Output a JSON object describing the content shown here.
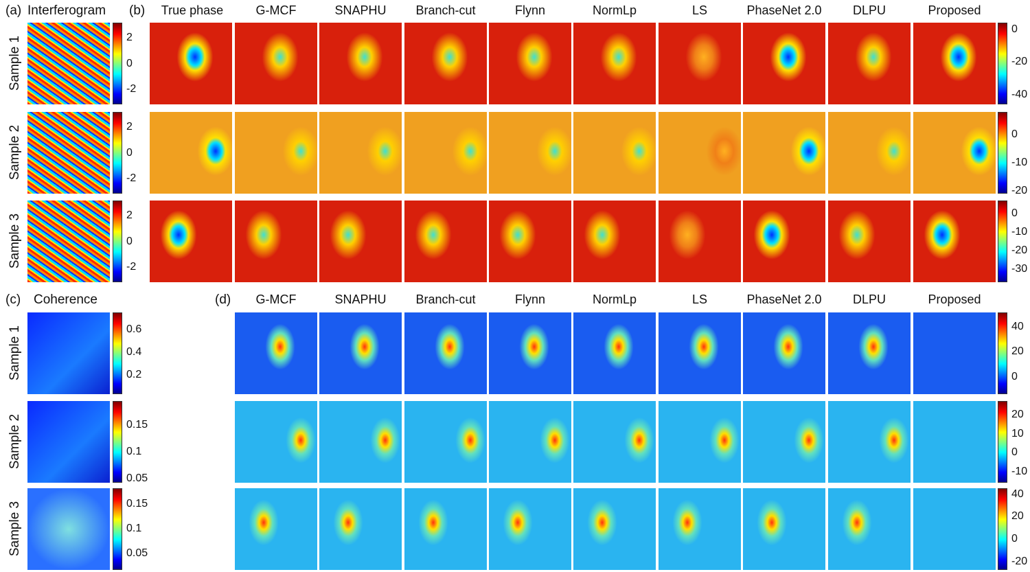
{
  "panels": {
    "a": {
      "tag": "(a)",
      "title": "Interferogram"
    },
    "b": {
      "tag": "(b)",
      "columns": [
        "True phase",
        "G-MCF",
        "SNAPHU",
        "Branch-cut",
        "Flynn",
        "NormLp",
        "LS",
        "PhaseNet 2.0",
        "DLPU",
        "Proposed"
      ]
    },
    "c": {
      "tag": "(c)",
      "title": "Coherence"
    },
    "d": {
      "tag": "(d)",
      "columns": [
        "G-MCF",
        "SNAPHU",
        "Branch-cut",
        "Flynn",
        "NormLp",
        "LS",
        "PhaseNet 2.0",
        "DLPU",
        "Proposed"
      ]
    }
  },
  "rows": [
    "Sample 1",
    "Sample 2",
    "Sample 3"
  ],
  "colorbars": {
    "a": [
      {
        "range": [
          -3.2,
          3.2
        ],
        "ticks": [
          "2",
          "0",
          "-2"
        ],
        "tick_values": [
          2,
          0,
          -2
        ]
      },
      {
        "range": [
          -3.2,
          3.2
        ],
        "ticks": [
          "2",
          "0",
          "-2"
        ],
        "tick_values": [
          2,
          0,
          -2
        ]
      },
      {
        "range": [
          -3.2,
          3.2
        ],
        "ticks": [
          "2",
          "0",
          "-2"
        ],
        "tick_values": [
          2,
          0,
          -2
        ]
      }
    ],
    "b": [
      {
        "range": [
          -46,
          4
        ],
        "ticks": [
          "0",
          "-20",
          "-40"
        ],
        "tick_values": [
          0,
          -20,
          -40
        ]
      },
      {
        "range": [
          -21,
          8
        ],
        "ticks": [
          "0",
          "-10",
          "-20"
        ],
        "tick_values": [
          0,
          -10,
          -20
        ]
      },
      {
        "range": [
          -37,
          7
        ],
        "ticks": [
          "0",
          "-10",
          "-20",
          "-30"
        ],
        "tick_values": [
          0,
          -10,
          -20,
          -30
        ]
      }
    ],
    "c": [
      {
        "range": [
          0.03,
          0.75
        ],
        "ticks": [
          "0.6",
          "0.4",
          "0.2"
        ],
        "tick_values": [
          0.6,
          0.4,
          0.2
        ]
      },
      {
        "range": [
          0.042,
          0.195
        ],
        "ticks": [
          "0.15",
          "0.1",
          "0.05"
        ],
        "tick_values": [
          0.15,
          0.1,
          0.05
        ]
      },
      {
        "range": [
          0.017,
          0.182
        ],
        "ticks": [
          "0.15",
          "0.1",
          "0.05"
        ],
        "tick_values": [
          0.15,
          0.1,
          0.05
        ]
      }
    ],
    "d": [
      {
        "range": [
          -13.7,
          51.5
        ],
        "ticks": [
          "40",
          "20",
          "0"
        ],
        "tick_values": [
          40,
          20,
          0
        ]
      },
      {
        "range": [
          -15.8,
          27.3
        ],
        "ticks": [
          "20",
          "10",
          "0",
          "-10"
        ],
        "tick_values": [
          20,
          10,
          0,
          -10
        ]
      },
      {
        "range": [
          -27.6,
          45.3
        ],
        "ticks": [
          "40",
          "20",
          "0",
          "-20"
        ],
        "tick_values": [
          40,
          20,
          0,
          -20
        ]
      }
    ]
  },
  "colormap": "jet",
  "colors": {
    "jet_low": "#00008f",
    "jet_high": "#800000"
  }
}
